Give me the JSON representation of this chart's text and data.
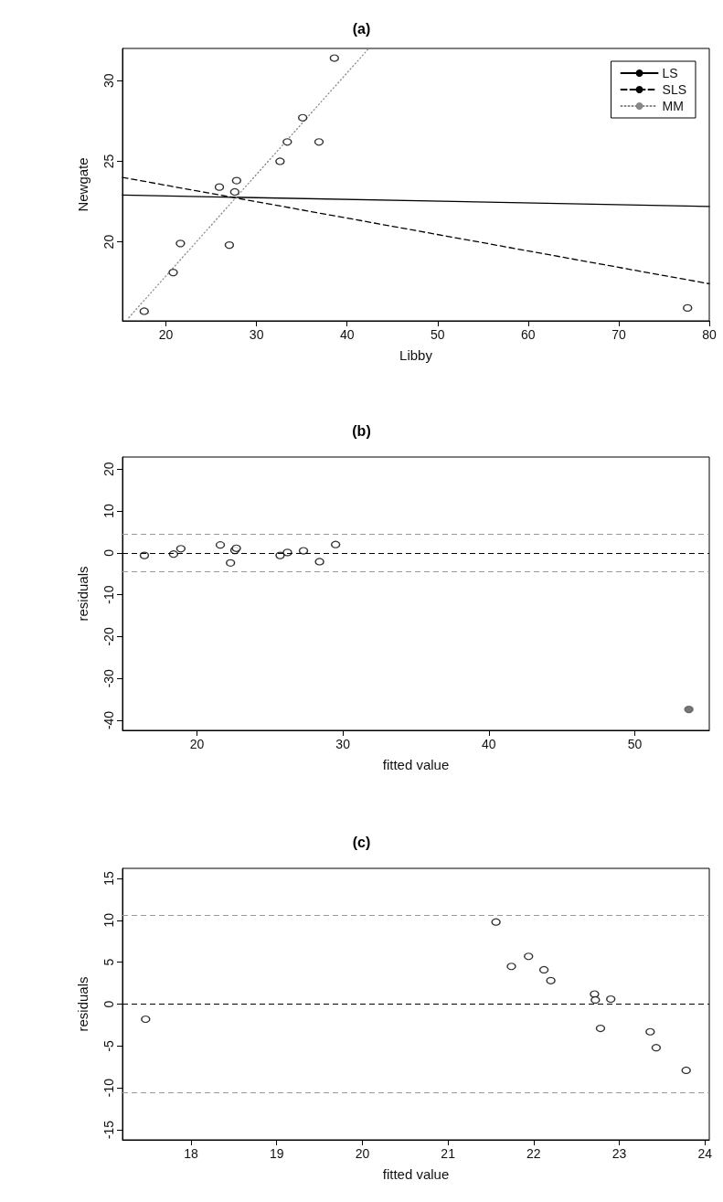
{
  "chart_data": [
    {
      "type": "scatter",
      "title": "(a)",
      "xlabel": "Libby",
      "ylabel": "Newgate",
      "xlim": [
        15.2,
        80
      ],
      "ylim": [
        15.1,
        32.0
      ],
      "xticks": [
        20,
        30,
        40,
        50,
        60,
        70,
        80
      ],
      "yticks": [
        20,
        25,
        30
      ],
      "grid": false,
      "legend": "top right",
      "series": [
        {
          "type": "scatter",
          "marker": "circle",
          "color": "#000000",
          "x": [
            17.6,
            20.8,
            21.6,
            27.0,
            25.9,
            27.6,
            27.8,
            32.6,
            33.4,
            36.9,
            35.1,
            38.6,
            77.6
          ],
          "values": [
            15.7,
            18.1,
            19.9,
            19.8,
            23.4,
            23.1,
            23.8,
            25.0,
            26.2,
            26.2,
            27.7,
            31.4,
            15.9
          ]
        },
        {
          "type": "line",
          "name": "LS",
          "color": "#000000",
          "line_style": "solid",
          "x": [
            15.2,
            80
          ],
          "values": [
            22.9,
            22.2
          ]
        },
        {
          "type": "line",
          "name": "SLS",
          "color": "#000000",
          "line_style": "dashed",
          "x": [
            15.2,
            80
          ],
          "values": [
            24.0,
            17.4
          ]
        },
        {
          "type": "line",
          "name": "MM",
          "color": "#888888",
          "line_style": "dotted",
          "x": [
            15.9,
            42.4
          ],
          "values": [
            15.3,
            32.0
          ]
        }
      ]
    },
    {
      "type": "scatter",
      "title": "(b)",
      "xlabel": "fitted value",
      "ylabel": "residuals",
      "xlim": [
        14.9,
        55.1
      ],
      "ylim": [
        -42.4,
        22.9
      ],
      "xticks": [
        20,
        30,
        40,
        50
      ],
      "yticks": [
        -40,
        -30,
        -20,
        -10,
        0,
        10,
        20
      ],
      "grid": false,
      "marker": "circle",
      "ref_lines": [
        {
          "axis": "y",
          "value": 0,
          "color": "#000000",
          "line_style": "dashed"
        },
        {
          "axis": "y",
          "value": 4.5,
          "color": "#999999",
          "line_style": "dashed"
        },
        {
          "axis": "y",
          "value": -4.5,
          "color": "#999999",
          "line_style": "dashed"
        }
      ],
      "series": [
        {
          "type": "scatter",
          "color": "#000000",
          "colors": [
            "#000000",
            "#000000",
            "#000000",
            "#000000",
            "#000000",
            "#000000",
            "#000000",
            "#000000",
            "#000000",
            "#000000",
            "#000000",
            "#000000",
            "#555555"
          ],
          "x": [
            16.4,
            18.4,
            18.9,
            21.6,
            22.3,
            22.6,
            22.7,
            25.7,
            26.2,
            27.3,
            28.4,
            29.5,
            53.7
          ],
          "values": [
            -0.6,
            -0.3,
            1.0,
            1.9,
            -2.4,
            0.6,
            1.1,
            -0.6,
            0.1,
            0.5,
            -2.1,
            2.0,
            -37.4
          ]
        }
      ]
    },
    {
      "type": "scatter",
      "title": "(c)",
      "xlabel": "fitted value",
      "ylabel": "residuals",
      "xlim": [
        17.2,
        24.05
      ],
      "ylim": [
        -16.2,
        16.2
      ],
      "xticks": [
        18,
        19,
        20,
        21,
        22,
        23,
        24
      ],
      "yticks": [
        -15,
        -10,
        -5,
        0,
        5,
        10,
        15
      ],
      "grid": false,
      "marker": "circle",
      "ref_lines": [
        {
          "axis": "y",
          "value": 0,
          "color": "#000000",
          "line_style": "dashed"
        },
        {
          "axis": "y",
          "value": 10.6,
          "color": "#999999",
          "line_style": "dashed"
        },
        {
          "axis": "y",
          "value": -10.6,
          "color": "#999999",
          "line_style": "dashed"
        }
      ],
      "series": [
        {
          "type": "scatter",
          "color": "#000000",
          "x": [
            17.47,
            21.56,
            21.74,
            21.94,
            22.12,
            22.2,
            22.71,
            22.72,
            22.9,
            22.78,
            23.36,
            23.43,
            23.78
          ],
          "values": [
            -1.8,
            9.8,
            4.5,
            5.7,
            4.1,
            2.8,
            1.2,
            0.5,
            0.6,
            -2.9,
            -3.3,
            -5.2,
            -7.9
          ]
        }
      ]
    }
  ]
}
